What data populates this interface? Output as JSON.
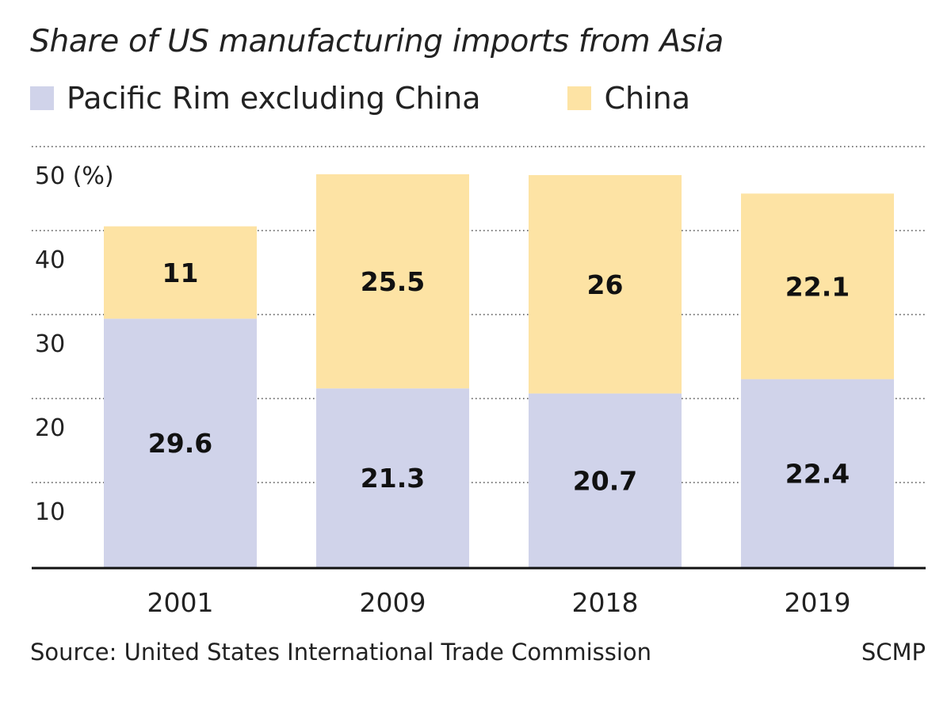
{
  "chart_data": {
    "type": "bar",
    "stacked": true,
    "title": "Share of US manufacturing imports from Asia",
    "categories": [
      "2001",
      "2009",
      "2018",
      "2019"
    ],
    "series": [
      {
        "name": "Pacific Rim excluding China",
        "values": [
          29.6,
          21.3,
          20.7,
          22.4
        ],
        "color": "#d0d3ea"
      },
      {
        "name": "China",
        "values": [
          11,
          25.5,
          26,
          22.1
        ],
        "color": "#fde3a4"
      }
    ],
    "ylim": [
      0,
      50
    ],
    "yticks": [
      10,
      20,
      30,
      40,
      50
    ],
    "ytick_labels": [
      "10",
      "20",
      "30",
      "40",
      "50 (%)"
    ],
    "grid": "dotted horizontal",
    "legend_position": "top-left"
  },
  "source": "Source: United States International Trade Commission",
  "credit": "SCMP"
}
